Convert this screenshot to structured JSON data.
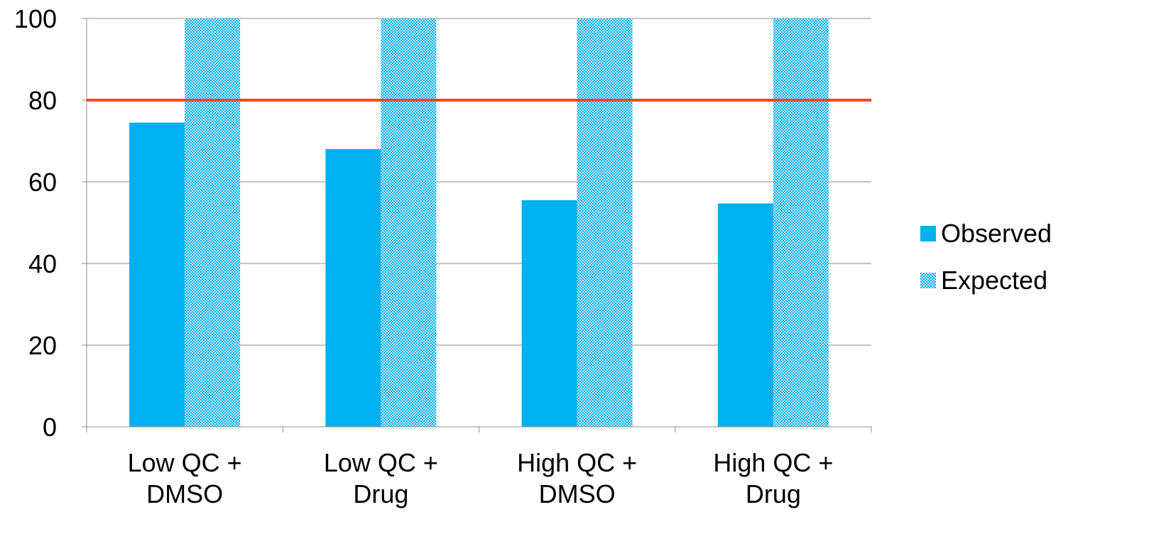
{
  "chart_data": {
    "type": "bar",
    "title": "",
    "xlabel": "",
    "ylabel": "",
    "categories": [
      [
        "Low QC +",
        "DMSO"
      ],
      [
        "Low QC +",
        "Drug"
      ],
      [
        "High QC +",
        "DMSO"
      ],
      [
        "High QC +",
        "Drug"
      ]
    ],
    "series": [
      {
        "name": "Observed",
        "values": [
          74.5,
          68,
          55.5,
          54.7
        ],
        "color": "#00B0F0",
        "fill": "solid"
      },
      {
        "name": "Expected",
        "values": [
          100,
          100,
          100,
          100
        ],
        "color": "#00B0F0",
        "fill": "dotted-pattern"
      }
    ],
    "reference_line": {
      "value": 80,
      "color": "#F4461F"
    },
    "ylim": [
      0,
      100
    ],
    "yticks": [
      "0",
      "20",
      "40",
      "60",
      "80",
      "100"
    ],
    "grid": true,
    "legend_position": "right"
  }
}
